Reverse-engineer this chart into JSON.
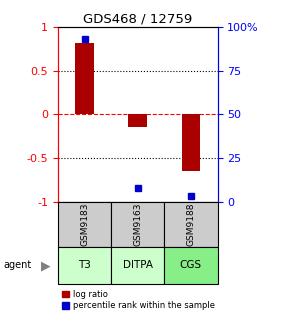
{
  "title": "GDS468 / 12759",
  "samples": [
    "GSM9183",
    "GSM9163",
    "GSM9188"
  ],
  "agents": [
    "T3",
    "DITPA",
    "CGS"
  ],
  "log_ratios": [
    0.82,
    -0.15,
    -0.65
  ],
  "percentile_ranks": [
    0.93,
    0.08,
    0.03
  ],
  "bar_color": "#aa0000",
  "dot_color": "#0000cc",
  "left_ylim": [
    -1.0,
    1.0
  ],
  "right_ylim": [
    0.0,
    1.0
  ],
  "yticks_left": [
    -1,
    -0.5,
    0,
    0.5,
    1
  ],
  "ytick_labels_left": [
    "-1",
    "-0.5",
    "0",
    "0.5",
    "1"
  ],
  "yticks_right": [
    0.0,
    0.25,
    0.5,
    0.75,
    1.0
  ],
  "ytick_labels_right": [
    "0",
    "25",
    "50",
    "75",
    "100%"
  ],
  "agent_color_light": "#ccffcc",
  "agent_color_bright": "#88ee88",
  "sample_color": "#cccccc",
  "bar_width": 0.35
}
